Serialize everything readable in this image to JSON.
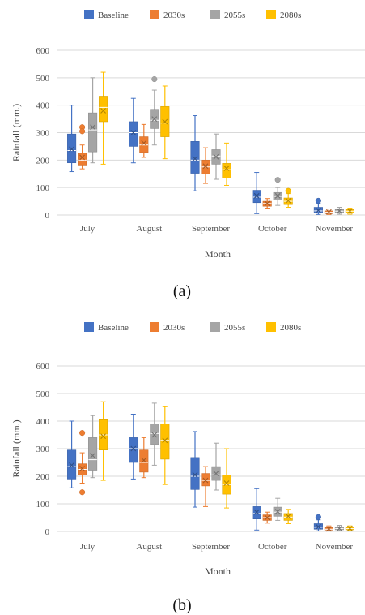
{
  "chart_data": [
    {
      "type": "boxplot",
      "caption": "(a)",
      "xlabel": "Month",
      "ylabel": "Rainfall (mm.)",
      "ylim": [
        0,
        600
      ],
      "yticks": [
        "0",
        "100",
        "200",
        "300",
        "400",
        "500",
        "600"
      ],
      "categories": [
        "July",
        "August",
        "September",
        "October",
        "November"
      ],
      "legend_position": "top",
      "series": [
        {
          "name": "Baseline",
          "color": "#4472C4",
          "boxes": [
            {
              "min": 158,
              "q1": 190,
              "median": 235,
              "q3": 295,
              "max": 400,
              "mean": 240,
              "outliers": []
            },
            {
              "min": 190,
              "q1": 250,
              "median": 300,
              "q3": 340,
              "max": 425,
              "mean": 300,
              "outliers": []
            },
            {
              "min": 88,
              "q1": 152,
              "median": 200,
              "q3": 268,
              "max": 362,
              "mean": 205,
              "outliers": []
            },
            {
              "min": 5,
              "q1": 45,
              "median": 65,
              "q3": 90,
              "max": 155,
              "mean": 70,
              "outliers": []
            },
            {
              "min": 2,
              "q1": 8,
              "median": 15,
              "q3": 28,
              "max": 42,
              "mean": 17,
              "outliers": [
                52
              ]
            }
          ]
        },
        {
          "name": "2030s",
          "color": "#ED7D31",
          "boxes": [
            {
              "min": 168,
              "q1": 182,
              "median": 200,
              "q3": 225,
              "max": 255,
              "mean": 210,
              "outliers": [
                320,
                305
              ]
            },
            {
              "min": 210,
              "q1": 228,
              "median": 255,
              "q3": 285,
              "max": 330,
              "mean": 262,
              "outliers": []
            },
            {
              "min": 115,
              "q1": 150,
              "median": 175,
              "q3": 200,
              "max": 245,
              "mean": 178,
              "outliers": []
            },
            {
              "min": 25,
              "q1": 32,
              "median": 42,
              "q3": 50,
              "max": 60,
              "mean": 42,
              "outliers": []
            },
            {
              "min": 2,
              "q1": 5,
              "median": 10,
              "q3": 15,
              "max": 22,
              "mean": 11,
              "outliers": []
            }
          ]
        },
        {
          "name": "2055s",
          "color": "#A5A5A5",
          "boxes": [
            {
              "min": 190,
              "q1": 230,
              "median": 310,
              "q3": 372,
              "max": 500,
              "mean": 320,
              "outliers": []
            },
            {
              "min": 255,
              "q1": 315,
              "median": 345,
              "q3": 385,
              "max": 455,
              "mean": 350,
              "outliers": [
                495
              ]
            },
            {
              "min": 130,
              "q1": 185,
              "median": 215,
              "q3": 238,
              "max": 295,
              "mean": 212,
              "outliers": []
            },
            {
              "min": 35,
              "q1": 55,
              "median": 68,
              "q3": 82,
              "max": 100,
              "mean": 70,
              "outliers": [
                128
              ]
            },
            {
              "min": 3,
              "q1": 8,
              "median": 14,
              "q3": 20,
              "max": 28,
              "mean": 15,
              "outliers": []
            }
          ]
        },
        {
          "name": "2080s",
          "color": "#FFC000",
          "boxes": [
            {
              "min": 185,
              "q1": 340,
              "median": 392,
              "q3": 433,
              "max": 520,
              "mean": 380,
              "outliers": []
            },
            {
              "min": 205,
              "q1": 285,
              "median": 335,
              "q3": 395,
              "max": 470,
              "mean": 340,
              "outliers": []
            },
            {
              "min": 108,
              "q1": 135,
              "median": 165,
              "q3": 188,
              "max": 262,
              "mean": 170,
              "outliers": []
            },
            {
              "min": 28,
              "q1": 38,
              "median": 50,
              "q3": 62,
              "max": 78,
              "mean": 52,
              "outliers": [
                88
              ]
            },
            {
              "min": 3,
              "q1": 8,
              "median": 14,
              "q3": 20,
              "max": 25,
              "mean": 14,
              "outliers": []
            }
          ]
        }
      ]
    },
    {
      "type": "boxplot",
      "caption": "(b)",
      "xlabel": "Month",
      "ylabel": "Rainfall (mm.)",
      "ylim": [
        0,
        600
      ],
      "yticks": [
        "0",
        "100",
        "200",
        "300",
        "400",
        "500",
        "600"
      ],
      "categories": [
        "July",
        "August",
        "September",
        "October",
        "November"
      ],
      "legend_position": "top",
      "series": [
        {
          "name": "Baseline",
          "color": "#4472C4",
          "boxes": [
            {
              "min": 158,
              "q1": 190,
              "median": 235,
              "q3": 295,
              "max": 400,
              "mean": 240,
              "outliers": []
            },
            {
              "min": 190,
              "q1": 250,
              "median": 300,
              "q3": 340,
              "max": 425,
              "mean": 300,
              "outliers": []
            },
            {
              "min": 88,
              "q1": 152,
              "median": 200,
              "q3": 268,
              "max": 362,
              "mean": 205,
              "outliers": []
            },
            {
              "min": 5,
              "q1": 45,
              "median": 65,
              "q3": 90,
              "max": 155,
              "mean": 70,
              "outliers": []
            },
            {
              "min": 2,
              "q1": 8,
              "median": 15,
              "q3": 28,
              "max": 42,
              "mean": 17,
              "outliers": [
                52
              ]
            }
          ]
        },
        {
          "name": "2030s",
          "color": "#ED7D31",
          "boxes": [
            {
              "min": 175,
              "q1": 205,
              "median": 225,
              "q3": 245,
              "max": 285,
              "mean": 228,
              "outliers": [
                357,
                142
              ]
            },
            {
              "min": 195,
              "q1": 215,
              "median": 250,
              "q3": 295,
              "max": 340,
              "mean": 258,
              "outliers": []
            },
            {
              "min": 90,
              "q1": 165,
              "median": 185,
              "q3": 210,
              "max": 235,
              "mean": 185,
              "outliers": []
            },
            {
              "min": 30,
              "q1": 40,
              "median": 50,
              "q3": 60,
              "max": 70,
              "mean": 50,
              "outliers": []
            },
            {
              "min": 2,
              "q1": 5,
              "median": 8,
              "q3": 14,
              "max": 20,
              "mean": 9,
              "outliers": []
            }
          ]
        },
        {
          "name": "2055s",
          "color": "#A5A5A5",
          "boxes": [
            {
              "min": 195,
              "q1": 222,
              "median": 260,
              "q3": 340,
              "max": 420,
              "mean": 275,
              "outliers": []
            },
            {
              "min": 240,
              "q1": 315,
              "median": 355,
              "q3": 390,
              "max": 465,
              "mean": 350,
              "outliers": []
            },
            {
              "min": 150,
              "q1": 185,
              "median": 205,
              "q3": 235,
              "max": 320,
              "mean": 210,
              "outliers": []
            },
            {
              "min": 40,
              "q1": 55,
              "median": 70,
              "q3": 88,
              "max": 120,
              "mean": 72,
              "outliers": []
            },
            {
              "min": 3,
              "q1": 6,
              "median": 10,
              "q3": 15,
              "max": 22,
              "mean": 11,
              "outliers": []
            }
          ]
        },
        {
          "name": "2080s",
          "color": "#FFC000",
          "boxes": [
            {
              "min": 185,
              "q1": 295,
              "median": 350,
              "q3": 405,
              "max": 470,
              "mean": 345,
              "outliers": []
            },
            {
              "min": 170,
              "q1": 262,
              "median": 330,
              "q3": 390,
              "max": 452,
              "mean": 330,
              "outliers": []
            },
            {
              "min": 85,
              "q1": 135,
              "median": 170,
              "q3": 205,
              "max": 300,
              "mean": 175,
              "outliers": []
            },
            {
              "min": 28,
              "q1": 40,
              "median": 52,
              "q3": 65,
              "max": 80,
              "mean": 55,
              "outliers": []
            },
            {
              "min": 3,
              "q1": 6,
              "median": 10,
              "q3": 15,
              "max": 20,
              "mean": 11,
              "outliers": []
            }
          ]
        }
      ]
    }
  ]
}
